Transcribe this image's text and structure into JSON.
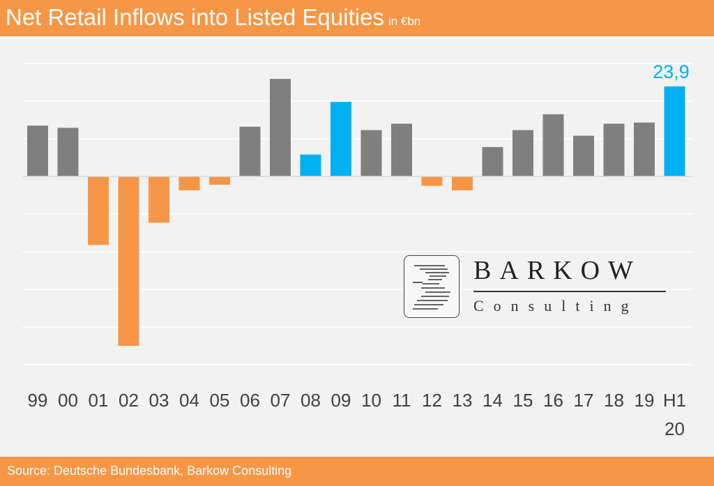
{
  "header": {
    "title": "Net Retail Inflows into Listed Equities",
    "unit": "in €bn"
  },
  "footer": {
    "source": "Source: Deutsche Bundesbank, Barkow Consulting"
  },
  "logo": {
    "name": "BARKOW",
    "subtitle": "Consulting"
  },
  "colors": {
    "positive": "#7f7f7f",
    "negative": "#f79646",
    "highlight": "#00b0f0",
    "grid": "#ffffff",
    "background": "#f2f2f2"
  },
  "chart_data": {
    "type": "bar",
    "title": "Net Retail Inflows into Listed Equities",
    "unit": "in €bn",
    "categories": [
      "99",
      "00",
      "01",
      "02",
      "03",
      "04",
      "05",
      "06",
      "07",
      "08",
      "09",
      "10",
      "11",
      "12",
      "13",
      "14",
      "15",
      "16",
      "17",
      "18",
      "19",
      "H1 20"
    ],
    "values": [
      13.5,
      12.9,
      -18.2,
      -45.0,
      -12.3,
      -3.7,
      -2.2,
      13.2,
      25.9,
      5.8,
      19.8,
      12.3,
      14.0,
      -2.5,
      -3.7,
      7.8,
      12.3,
      16.5,
      10.8,
      14.0,
      14.3,
      23.9
    ],
    "highlighted": [
      "08",
      "09",
      "H1 20"
    ],
    "data_labels": [
      {
        "category": "H1 20",
        "text": "23,9"
      }
    ],
    "ylim": [
      -50,
      32
    ],
    "grid": true,
    "legend": "none"
  }
}
